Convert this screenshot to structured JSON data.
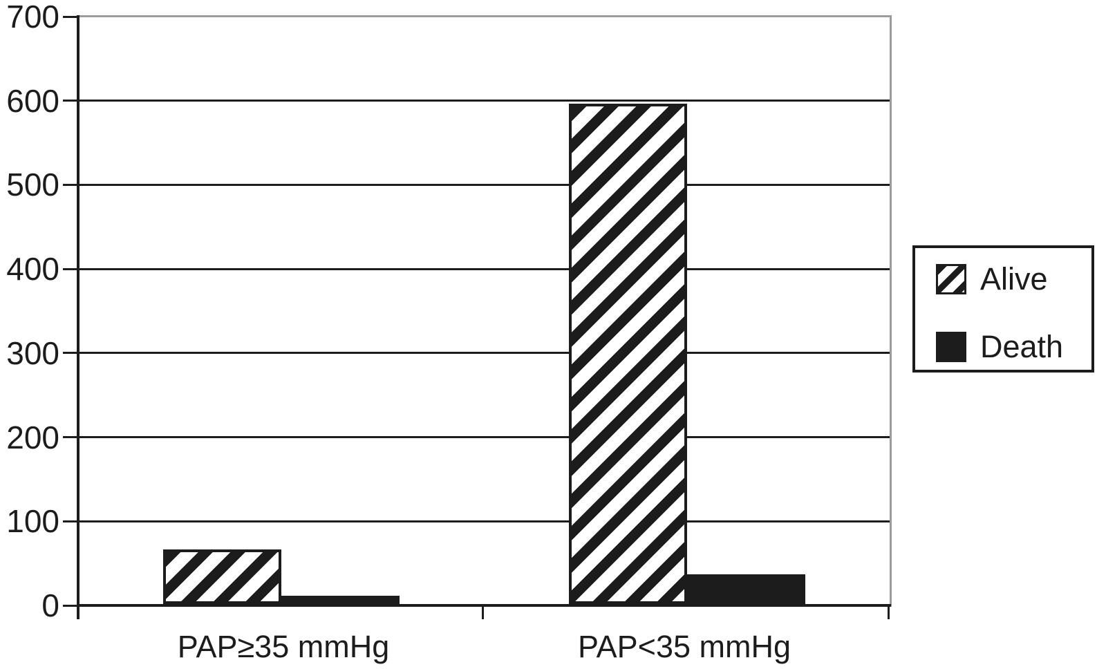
{
  "chart_data": {
    "type": "bar",
    "categories": [
      "PAP≥35 mmHg",
      "PAP<35 mmHg"
    ],
    "series": [
      {
        "name": "Alive",
        "style": "hatched",
        "values": [
          65,
          595
        ]
      },
      {
        "name": "Death",
        "style": "solid",
        "values": [
          10,
          35
        ]
      }
    ],
    "title": "",
    "xlabel": "",
    "ylabel": "",
    "ylim": [
      0,
      700
    ],
    "yticks": [
      0,
      100,
      200,
      300,
      400,
      500,
      600,
      700
    ],
    "ytick_labels": [
      "0",
      "100",
      "200",
      "300",
      "400",
      "500",
      "600",
      "700"
    ],
    "grid": "horizontal",
    "legend": {
      "position": "right",
      "entries": [
        "Alive",
        "Death"
      ]
    },
    "colors": {
      "bar_black": "#1c1c1c",
      "hatch_background": "#ffffff",
      "plot_border_gray": "#9c9c9c",
      "background": "#ffffff"
    }
  }
}
